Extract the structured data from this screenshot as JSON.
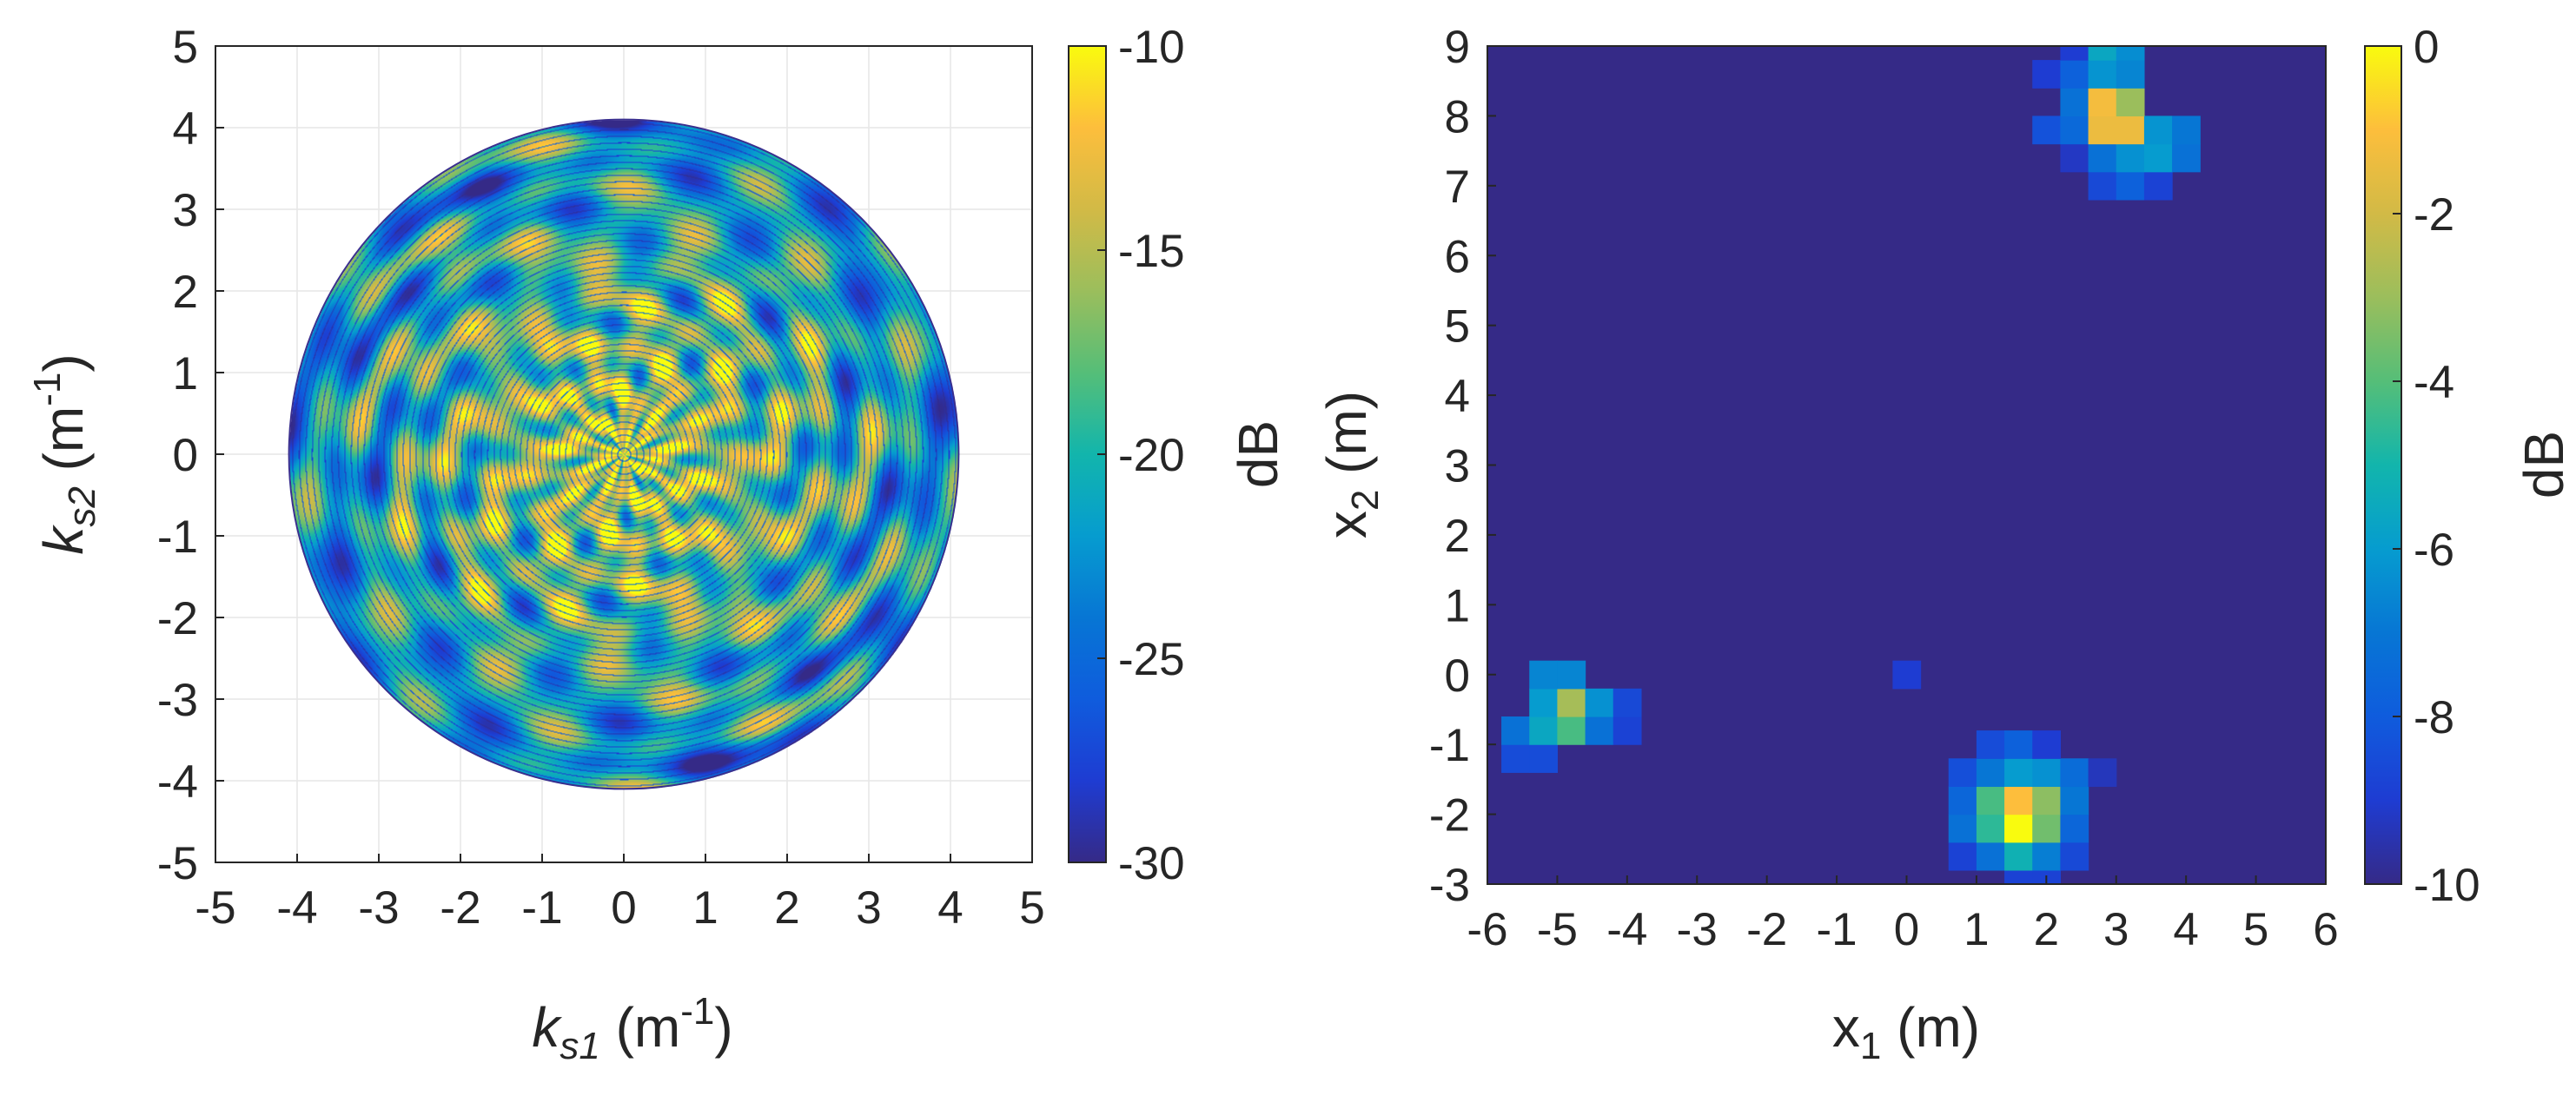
{
  "chart_data": [
    {
      "type": "heatmap",
      "ylabel": {
        "base": "k",
        "sub": "s2",
        "unit": "(m",
        "sup": "-1",
        "close": ")"
      },
      "xlabel": {
        "base": "k",
        "sub": "s1",
        "unit": "(m",
        "sup": "-1",
        "close": ")"
      },
      "xlim": [
        -5,
        5
      ],
      "ylim": [
        -5,
        5
      ],
      "xticks": [
        "-5",
        "-4",
        "-3",
        "-2",
        "-1",
        "0",
        "1",
        "2",
        "3",
        "4",
        "5"
      ],
      "yticks": [
        "5",
        "4",
        "3",
        "2",
        "1",
        "0",
        "-1",
        "-2",
        "-3",
        "-4",
        "-5"
      ],
      "grid": true,
      "shape": "disc",
      "disc_radius": 4.1,
      "colorbar": {
        "label": "dB",
        "min": -30,
        "max": -10,
        "ticks": [
          "-10",
          "-15",
          "-20",
          "-25",
          "-30"
        ]
      },
      "colormap": "parula"
    },
    {
      "type": "heatmap",
      "ylabel": {
        "base": "x",
        "sub": "2",
        "unit": "(m)"
      },
      "xlabel": {
        "base": "x",
        "sub": "1",
        "unit": "(m)"
      },
      "xlim": [
        -6,
        6
      ],
      "ylim": [
        -3,
        9
      ],
      "xticks": [
        "-6",
        "-5",
        "-4",
        "-3",
        "-2",
        "-1",
        "0",
        "1",
        "2",
        "3",
        "4",
        "5",
        "6"
      ],
      "yticks": [
        "9",
        "8",
        "7",
        "6",
        "5",
        "4",
        "3",
        "2",
        "1",
        "0",
        "-1",
        "-2",
        "-3"
      ],
      "grid": false,
      "cell_size": 0.4,
      "background_db": -10,
      "colorbar": {
        "label": "dB",
        "min": -10,
        "max": 0,
        "ticks": [
          "0",
          "-2",
          "-4",
          "-6",
          "-8",
          "-10"
        ]
      },
      "colormap": "parula",
      "cells": [
        {
          "x": -5.6,
          "y": -1.2,
          "db": -8.5
        },
        {
          "x": -5.2,
          "y": -1.2,
          "db": -8.5
        },
        {
          "x": -5.6,
          "y": -0.8,
          "db": -7.2
        },
        {
          "x": -5.2,
          "y": -0.8,
          "db": -5.6
        },
        {
          "x": -4.8,
          "y": -0.8,
          "db": -4.2
        },
        {
          "x": -4.4,
          "y": -0.8,
          "db": -7.2
        },
        {
          "x": -4.0,
          "y": -0.8,
          "db": -8.8
        },
        {
          "x": -5.2,
          "y": -0.4,
          "db": -6.0
        },
        {
          "x": -4.8,
          "y": -0.4,
          "db": -2.8
        },
        {
          "x": -4.4,
          "y": -0.4,
          "db": -6.3
        },
        {
          "x": -4.0,
          "y": -0.4,
          "db": -8.6
        },
        {
          "x": -5.2,
          "y": 0.0,
          "db": -6.6
        },
        {
          "x": -4.8,
          "y": 0.0,
          "db": -6.6
        },
        {
          "x": 0.0,
          "y": 0.0,
          "db": -9.0
        },
        {
          "x": 1.6,
          "y": -3.0,
          "db": -8.8
        },
        {
          "x": 2.0,
          "y": -3.0,
          "db": -8.8
        },
        {
          "x": 0.8,
          "y": -2.6,
          "db": -8.8
        },
        {
          "x": 1.2,
          "y": -2.6,
          "db": -7.2
        },
        {
          "x": 1.6,
          "y": -2.6,
          "db": -5.2
        },
        {
          "x": 2.0,
          "y": -2.6,
          "db": -6.8
        },
        {
          "x": 2.4,
          "y": -2.6,
          "db": -8.6
        },
        {
          "x": 0.8,
          "y": -2.2,
          "db": -7.2
        },
        {
          "x": 1.2,
          "y": -2.2,
          "db": -4.6
        },
        {
          "x": 1.6,
          "y": -2.2,
          "db": 0.0
        },
        {
          "x": 2.0,
          "y": -2.2,
          "db": -3.6
        },
        {
          "x": 2.4,
          "y": -2.2,
          "db": -7.6
        },
        {
          "x": 0.8,
          "y": -1.8,
          "db": -7.6
        },
        {
          "x": 1.2,
          "y": -1.8,
          "db": -4.2
        },
        {
          "x": 1.6,
          "y": -1.8,
          "db": -1.0
        },
        {
          "x": 2.0,
          "y": -1.8,
          "db": -3.2
        },
        {
          "x": 2.4,
          "y": -1.8,
          "db": -7.0
        },
        {
          "x": 0.8,
          "y": -1.4,
          "db": -8.4
        },
        {
          "x": 1.2,
          "y": -1.4,
          "db": -7.0
        },
        {
          "x": 1.6,
          "y": -1.4,
          "db": -6.0
        },
        {
          "x": 2.0,
          "y": -1.4,
          "db": -6.3
        },
        {
          "x": 2.4,
          "y": -1.4,
          "db": -7.4
        },
        {
          "x": 2.8,
          "y": -1.4,
          "db": -9.3
        },
        {
          "x": 1.2,
          "y": -1.0,
          "db": -8.5
        },
        {
          "x": 1.6,
          "y": -1.0,
          "db": -7.8
        },
        {
          "x": 2.0,
          "y": -1.0,
          "db": -9.0
        },
        {
          "x": 2.8,
          "y": 7.0,
          "db": -8.6
        },
        {
          "x": 3.2,
          "y": 7.0,
          "db": -7.8
        },
        {
          "x": 3.6,
          "y": 7.0,
          "db": -8.8
        },
        {
          "x": 2.4,
          "y": 7.4,
          "db": -9.2
        },
        {
          "x": 2.8,
          "y": 7.4,
          "db": -7.2
        },
        {
          "x": 3.2,
          "y": 7.4,
          "db": -6.3
        },
        {
          "x": 3.6,
          "y": 7.4,
          "db": -6.0
        },
        {
          "x": 4.0,
          "y": 7.4,
          "db": -7.2
        },
        {
          "x": 2.0,
          "y": 7.8,
          "db": -8.3
        },
        {
          "x": 2.4,
          "y": 7.8,
          "db": -7.5
        },
        {
          "x": 2.8,
          "y": 7.8,
          "db": -1.4
        },
        {
          "x": 3.2,
          "y": 7.8,
          "db": -1.4
        },
        {
          "x": 3.6,
          "y": 7.8,
          "db": -6.2
        },
        {
          "x": 4.0,
          "y": 7.8,
          "db": -7.0
        },
        {
          "x": 2.4,
          "y": 8.2,
          "db": -7.2
        },
        {
          "x": 2.8,
          "y": 8.2,
          "db": -1.2
        },
        {
          "x": 3.2,
          "y": 8.2,
          "db": -3.0
        },
        {
          "x": 2.0,
          "y": 8.6,
          "db": -9.0
        },
        {
          "x": 2.4,
          "y": 8.6,
          "db": -7.8
        },
        {
          "x": 2.8,
          "y": 8.6,
          "db": -6.2
        },
        {
          "x": 3.2,
          "y": 8.6,
          "db": -6.6
        },
        {
          "x": 2.4,
          "y": 9.0,
          "db": -9.0
        },
        {
          "x": 2.8,
          "y": 9.0,
          "db": -5.6
        },
        {
          "x": 3.2,
          "y": 9.0,
          "db": -6.4
        }
      ]
    }
  ]
}
